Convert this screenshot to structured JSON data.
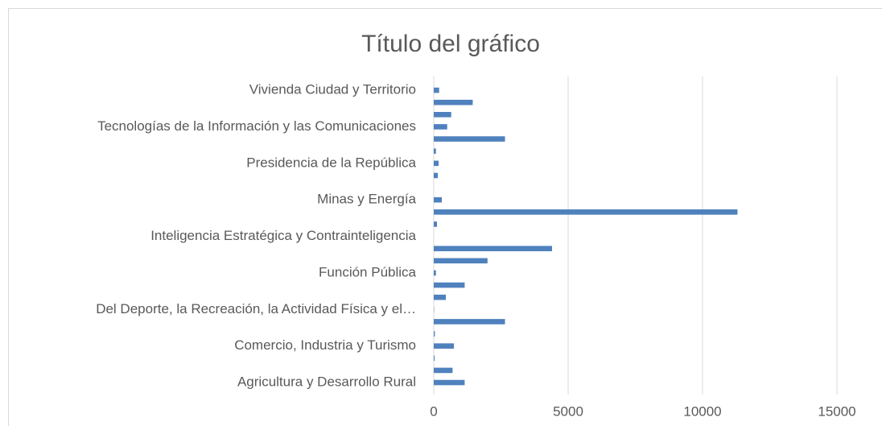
{
  "chart_data": {
    "type": "barh",
    "title": "Título del gráfico",
    "categories": [
      "Agricultura y Desarrollo Rural",
      null,
      null,
      "Comercio, Industria y Turismo",
      null,
      null,
      "Del Deporte, la Recreación, la Actividad Física y el…",
      null,
      null,
      "Función Pública",
      null,
      null,
      "Inteligencia Estratégica y Contrainteligencia",
      null,
      null,
      "Minas y Energía",
      null,
      null,
      "Presidencia de la República",
      null,
      null,
      "Tecnologías de la Información y las Comunicaciones",
      null,
      null,
      "Vivienda Ciudad y Territorio"
    ],
    "values": [
      1150,
      700,
      30,
      750,
      40,
      2650,
      10,
      450,
      1150,
      80,
      2000,
      4400,
      0,
      120,
      11300,
      300,
      0,
      150,
      180,
      80,
      2650,
      500,
      650,
      1450,
      200
    ],
    "color": "#4f81bd",
    "xlim": [
      0,
      15000
    ],
    "xticks": [
      0,
      5000,
      10000,
      15000
    ],
    "grid": true
  }
}
